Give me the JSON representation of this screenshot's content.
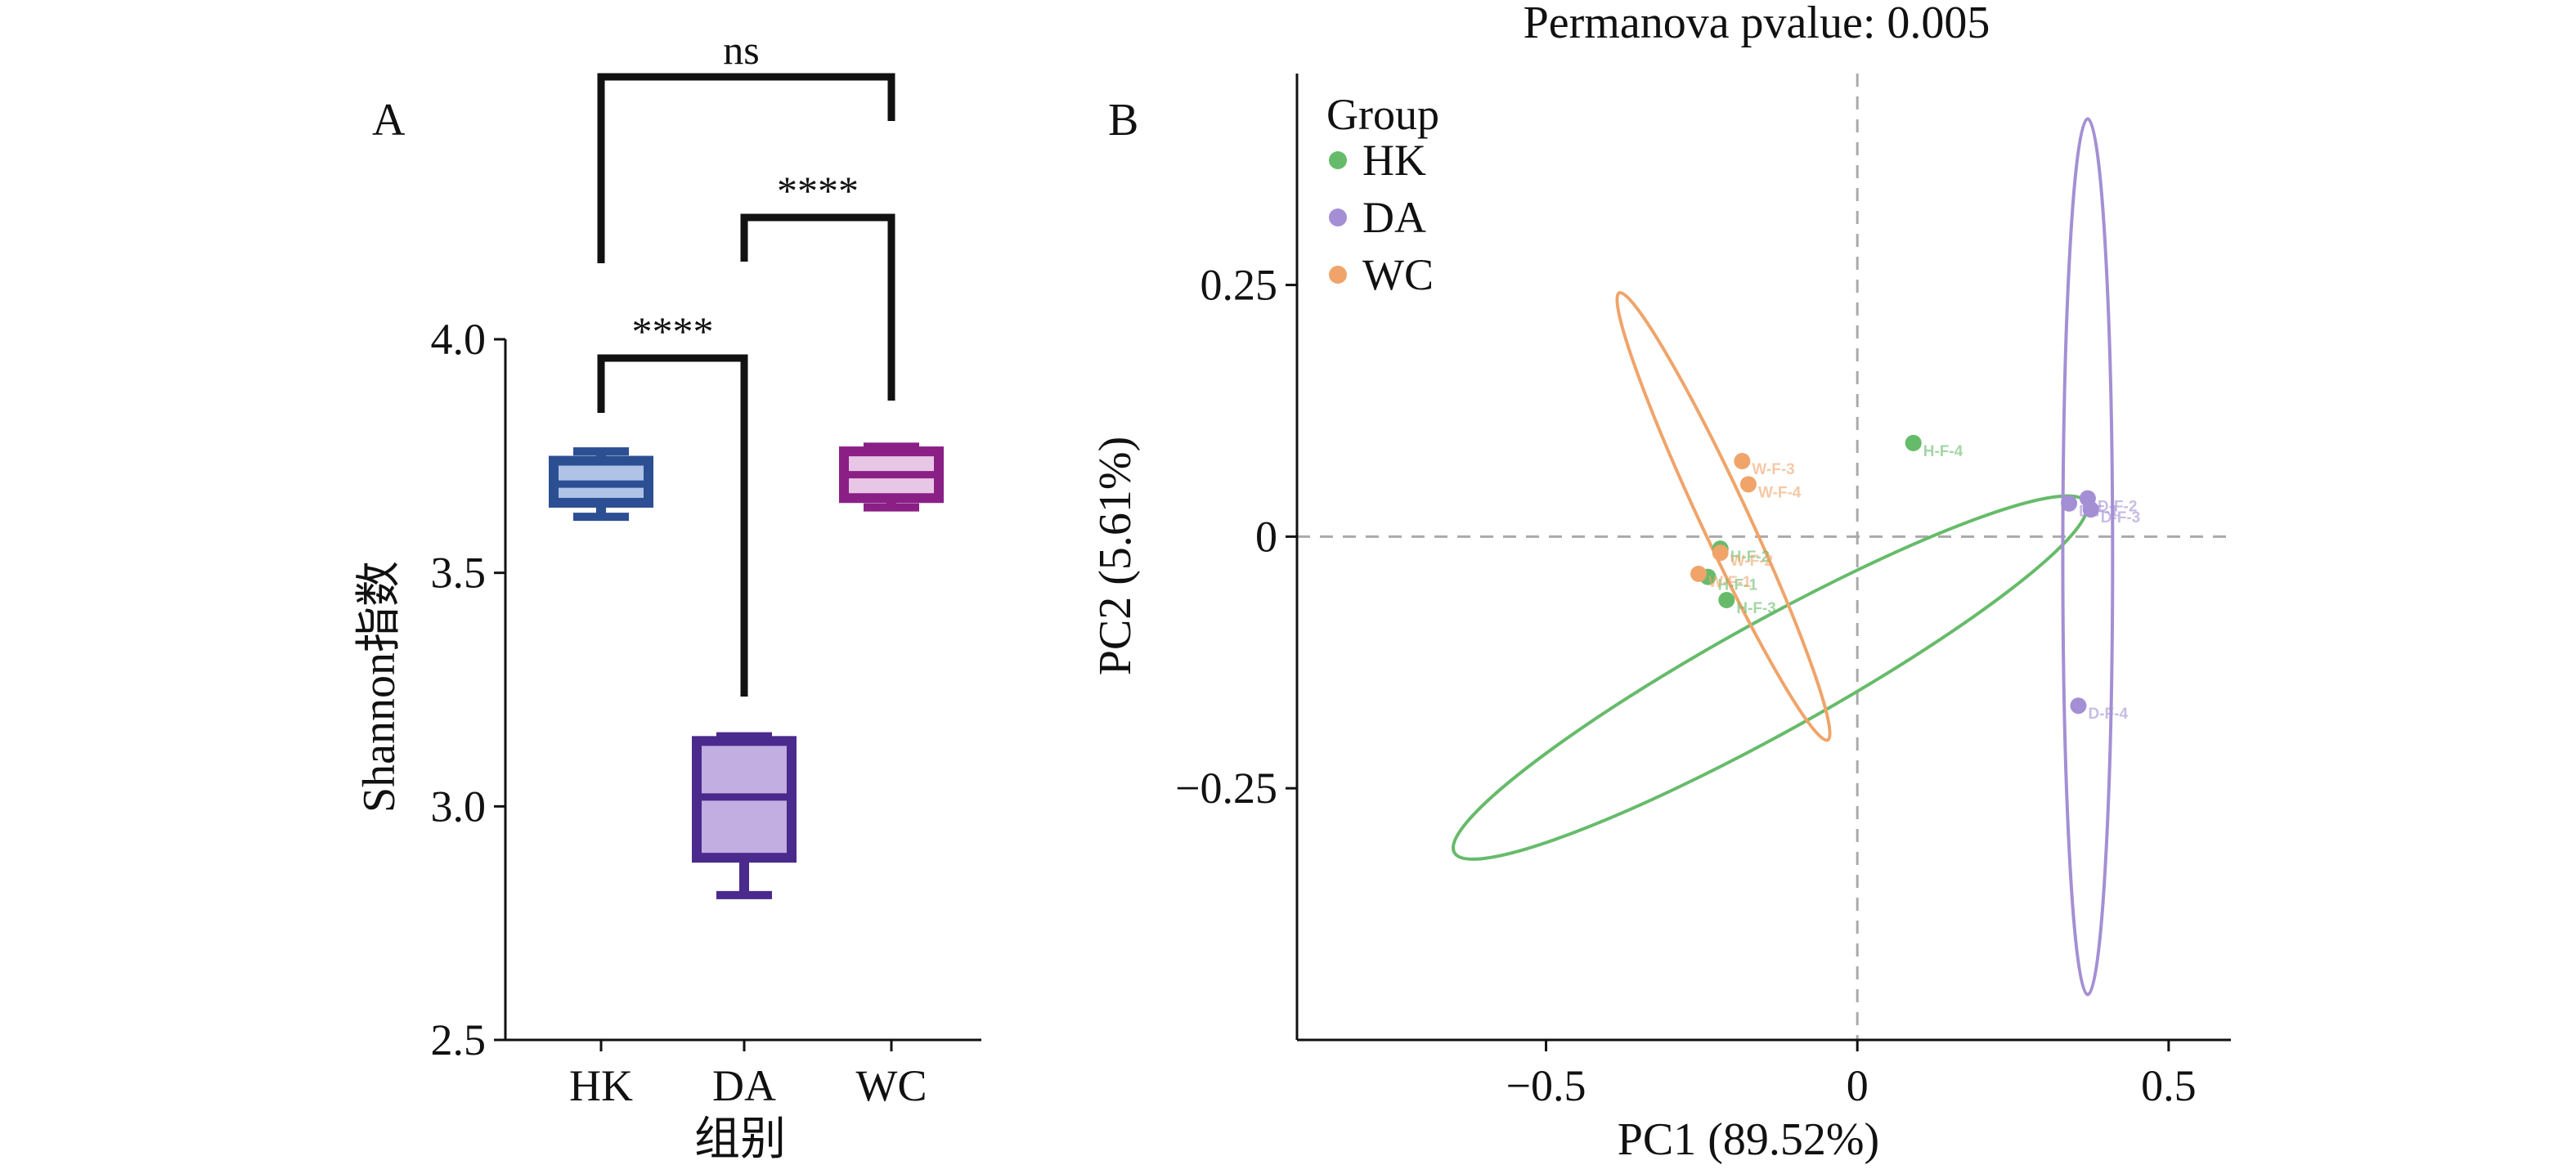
{
  "colors": {
    "HK": "#66bb6a",
    "DA": "#a48fd4",
    "WC": "#f0a46a",
    "box_HK_edge": "#2c4f93",
    "box_HK_fill": "#aec3e6",
    "box_DA_edge": "#4a2a8c",
    "box_DA_fill": "#c2aee0",
    "box_WC_edge": "#8a1f86",
    "box_WC_fill": "#e8c6e6",
    "bracket": "#111111",
    "refline": "#aaaaaa"
  },
  "chart_data": [
    {
      "panel": "A",
      "type": "box",
      "xlabel": "组别",
      "ylabel": "Shannon指数",
      "ylim": [
        2.5,
        4.0
      ],
      "yticks": [
        {
          "value": 2.5,
          "label": "2.5"
        },
        {
          "value": 3.0,
          "label": "3.0"
        },
        {
          "value": 3.5,
          "label": "3.5"
        },
        {
          "value": 4.0,
          "label": "4.0"
        }
      ],
      "categories": [
        "HK",
        "DA",
        "WC"
      ],
      "boxes": [
        {
          "group": "HK",
          "min": 3.62,
          "q1": 3.65,
          "median": 3.69,
          "q3": 3.74,
          "max": 3.76
        },
        {
          "group": "DA",
          "min": 2.81,
          "q1": 2.89,
          "median": 3.02,
          "q3": 3.14,
          "max": 3.15
        },
        {
          "group": "WC",
          "min": 3.64,
          "q1": 3.66,
          "median": 3.71,
          "q3": 3.76,
          "max": 3.77
        }
      ],
      "comparisons": [
        {
          "pair": [
            "HK",
            "DA"
          ],
          "label": "****"
        },
        {
          "pair": [
            "DA",
            "WC"
          ],
          "label": "****"
        },
        {
          "pair": [
            "HK",
            "WC"
          ],
          "label": "ns"
        }
      ]
    },
    {
      "panel": "B",
      "type": "scatter",
      "title": "Permanova pvalue: 0.005",
      "xlabel": "PC1 (89.52%)",
      "ylabel": "PC2 (5.61%)",
      "xlim": [
        -0.9,
        0.6
      ],
      "ylim": [
        -0.5,
        0.46
      ],
      "xticks": [
        {
          "value": -0.5,
          "label": "−0.5"
        },
        {
          "value": 0,
          "label": "0"
        },
        {
          "value": 0.5,
          "label": "0.5"
        }
      ],
      "yticks": [
        {
          "value": -0.25,
          "label": "−0.25"
        },
        {
          "value": 0,
          "label": "0"
        },
        {
          "value": 0.25,
          "label": "0.25"
        }
      ],
      "legend": {
        "title": "Group",
        "entries": [
          "HK",
          "DA",
          "WC"
        ],
        "placement": "top-left"
      },
      "series": [
        {
          "name": "HK",
          "points": [
            {
              "x": 0.09,
              "y": 0.093,
              "label": "H-F-4"
            },
            {
              "x": -0.22,
              "y": -0.012,
              "label": "H-F-2"
            },
            {
              "x": -0.24,
              "y": -0.04,
              "label": "H-F-1"
            },
            {
              "x": -0.21,
              "y": -0.063,
              "label": "H-F-3"
            }
          ],
          "ellipse": {
            "cx": -0.14,
            "cy": -0.14,
            "rx": 0.58,
            "ry": 0.055,
            "angle_deg": 29
          }
        },
        {
          "name": "DA",
          "points": [
            {
              "x": 0.34,
              "y": 0.033,
              "label": "D-F-1"
            },
            {
              "x": 0.37,
              "y": 0.038,
              "label": "D-F-2"
            },
            {
              "x": 0.375,
              "y": 0.027,
              "label": "D-F-3"
            },
            {
              "x": 0.355,
              "y": -0.168,
              "label": "D-F-4"
            }
          ],
          "ellipse": {
            "cx": 0.37,
            "cy": -0.02,
            "rx": 0.04,
            "ry": 0.435,
            "angle_deg": 0
          }
        },
        {
          "name": "WC",
          "points": [
            {
              "x": -0.185,
              "y": 0.075,
              "label": "W-F-3"
            },
            {
              "x": -0.175,
              "y": 0.052,
              "label": "W-F-4"
            },
            {
              "x": -0.22,
              "y": -0.016,
              "label": "W-F-2"
            },
            {
              "x": -0.255,
              "y": -0.037,
              "label": "W-F-1"
            }
          ],
          "ellipse": {
            "cx": -0.215,
            "cy": 0.02,
            "rx": 0.038,
            "ry": 0.245,
            "angle_deg": 25
          }
        }
      ]
    }
  ]
}
